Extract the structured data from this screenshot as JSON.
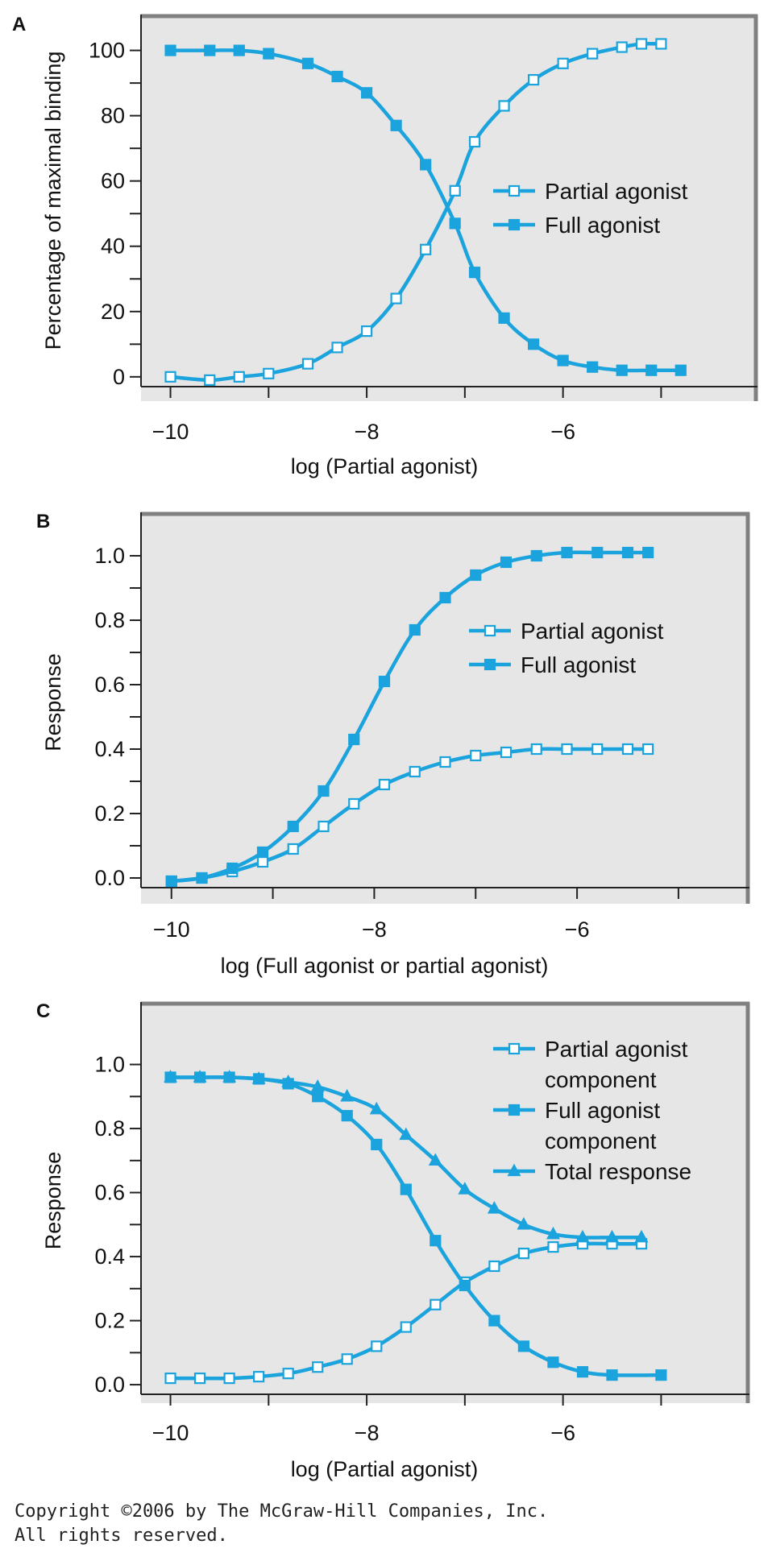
{
  "colors": {
    "series": "#1aa3dd",
    "plot_bg": "#e6e6e6",
    "frame": "#808080"
  },
  "chart_data": [
    {
      "panel": "A",
      "type": "line",
      "xlabel": "log (Partial agonist)",
      "ylabel": "Percentage of maximal binding",
      "xlim": [
        -10.3,
        -4.1
      ],
      "ylim": [
        -3,
        111
      ],
      "xticks": [
        -10,
        -9,
        -8,
        -7,
        -6,
        -5
      ],
      "xtick_labels": [
        "−10",
        "−8",
        "−6"
      ],
      "xtick_label_values": [
        -10,
        -8,
        -6
      ],
      "yticks": [
        0,
        10,
        20,
        30,
        40,
        50,
        60,
        70,
        80,
        90,
        100
      ],
      "ytick_labels": [
        "0",
        "20",
        "40",
        "60",
        "80",
        "100"
      ],
      "ytick_label_values": [
        0,
        20,
        40,
        60,
        80,
        100
      ],
      "legend_position": "right",
      "series": [
        {
          "name": "Partial agonist",
          "marker": "open-square",
          "x": [
            -10,
            -9.6,
            -9.3,
            -9,
            -8.6,
            -8.3,
            -8,
            -7.7,
            -7.4,
            -7.1,
            -6.9,
            -6.6,
            -6.3,
            -6,
            -5.7,
            -5.4,
            -5.2,
            -5
          ],
          "y": [
            0,
            -1,
            0,
            1,
            4,
            9,
            14,
            24,
            39,
            57,
            72,
            83,
            91,
            96,
            99,
            101,
            102,
            102
          ]
        },
        {
          "name": "Full agonist",
          "marker": "filled-square",
          "x": [
            -10,
            -9.6,
            -9.3,
            -9,
            -8.6,
            -8.3,
            -8,
            -7.7,
            -7.4,
            -7.1,
            -6.9,
            -6.6,
            -6.3,
            -6,
            -5.7,
            -5.4,
            -5.1,
            -4.8
          ],
          "y": [
            100,
            100,
            100,
            99,
            96,
            92,
            87,
            77,
            65,
            47,
            32,
            18,
            10,
            5,
            3,
            2,
            2,
            2
          ]
        }
      ]
    },
    {
      "panel": "B",
      "type": "line",
      "xlabel": "log (Full agonist or partial agonist)",
      "ylabel": "Response",
      "xlim": [
        -10.3,
        -4.3
      ],
      "ylim": [
        -0.03,
        1.12
      ],
      "xticks": [
        -10,
        -9,
        -8,
        -7,
        -6,
        -5
      ],
      "xtick_labels": [
        "−10",
        "−8",
        "−6"
      ],
      "xtick_label_values": [
        -10,
        -8,
        -6
      ],
      "yticks": [
        0,
        0.1,
        0.2,
        0.3,
        0.4,
        0.5,
        0.6,
        0.7,
        0.8,
        0.9,
        1.0
      ],
      "ytick_labels": [
        "0.0",
        "0.2",
        "0.4",
        "0.6",
        "0.8",
        "1.0"
      ],
      "ytick_label_values": [
        0,
        0.2,
        0.4,
        0.6,
        0.8,
        1.0
      ],
      "legend_position": "right",
      "series": [
        {
          "name": "Partial agonist",
          "marker": "open-square",
          "x": [
            -10,
            -9.7,
            -9.4,
            -9.1,
            -8.8,
            -8.5,
            -8.2,
            -7.9,
            -7.6,
            -7.3,
            -7,
            -6.7,
            -6.4,
            -6.1,
            -5.8,
            -5.5,
            -5.3
          ],
          "y": [
            -0.01,
            0,
            0.02,
            0.05,
            0.09,
            0.16,
            0.23,
            0.29,
            0.33,
            0.36,
            0.38,
            0.39,
            0.4,
            0.4,
            0.4,
            0.4,
            0.4
          ]
        },
        {
          "name": "Full agonist",
          "marker": "filled-square",
          "x": [
            -10,
            -9.7,
            -9.4,
            -9.1,
            -8.8,
            -8.5,
            -8.2,
            -7.9,
            -7.6,
            -7.3,
            -7,
            -6.7,
            -6.4,
            -6.1,
            -5.8,
            -5.5,
            -5.3
          ],
          "y": [
            -0.01,
            0,
            0.03,
            0.08,
            0.16,
            0.27,
            0.43,
            0.61,
            0.77,
            0.87,
            0.94,
            0.98,
            1.0,
            1.01,
            1.01,
            1.01,
            1.01
          ]
        }
      ]
    },
    {
      "panel": "C",
      "type": "line",
      "xlabel": "log (Partial agonist)",
      "ylabel": "Response",
      "xlim": [
        -10.3,
        -4.1
      ],
      "ylim": [
        -0.03,
        1.18
      ],
      "xticks": [
        -10,
        -9,
        -8,
        -7,
        -6,
        -5
      ],
      "xtick_labels": [
        "−10",
        "−8",
        "−6"
      ],
      "xtick_label_values": [
        -10,
        -8,
        -6
      ],
      "yticks": [
        0,
        0.1,
        0.2,
        0.3,
        0.4,
        0.5,
        0.6,
        0.7,
        0.8,
        0.9,
        1.0
      ],
      "ytick_labels": [
        "0.0",
        "0.2",
        "0.4",
        "0.6",
        "0.8",
        "1.0"
      ],
      "ytick_label_values": [
        0,
        0.2,
        0.4,
        0.6,
        0.8,
        1.0
      ],
      "legend_position": "top-right",
      "series": [
        {
          "name": "Partial agonist component",
          "legend_lines": [
            "Partial agonist",
            "component"
          ],
          "marker": "open-square",
          "x": [
            -10,
            -9.7,
            -9.4,
            -9.1,
            -8.8,
            -8.5,
            -8.2,
            -7.9,
            -7.6,
            -7.3,
            -7,
            -6.7,
            -6.4,
            -6.1,
            -5.8,
            -5.5,
            -5.2
          ],
          "y": [
            0.02,
            0.02,
            0.02,
            0.025,
            0.035,
            0.055,
            0.08,
            0.12,
            0.18,
            0.25,
            0.32,
            0.37,
            0.41,
            0.43,
            0.44,
            0.44,
            0.44
          ]
        },
        {
          "name": "Full agonist component",
          "legend_lines": [
            "Full agonist",
            "component"
          ],
          "marker": "filled-square",
          "x": [
            -10,
            -9.7,
            -9.4,
            -9.1,
            -8.8,
            -8.5,
            -8.2,
            -7.9,
            -7.6,
            -7.3,
            -7,
            -6.7,
            -6.4,
            -6.1,
            -5.8,
            -5.5,
            -5
          ],
          "y": [
            0.96,
            0.96,
            0.96,
            0.955,
            0.94,
            0.9,
            0.84,
            0.75,
            0.61,
            0.45,
            0.31,
            0.2,
            0.12,
            0.07,
            0.04,
            0.03,
            0.03
          ]
        },
        {
          "name": "Total response",
          "legend_lines": [
            "Total response"
          ],
          "marker": "filled-triangle",
          "x": [
            -10,
            -9.7,
            -9.4,
            -9.1,
            -8.8,
            -8.5,
            -8.2,
            -7.9,
            -7.6,
            -7.3,
            -7,
            -6.7,
            -6.4,
            -6.1,
            -5.8,
            -5.5,
            -5.2
          ],
          "y": [
            0.96,
            0.96,
            0.96,
            0.955,
            0.945,
            0.93,
            0.9,
            0.86,
            0.78,
            0.7,
            0.61,
            0.55,
            0.5,
            0.47,
            0.46,
            0.46,
            0.46
          ]
        }
      ]
    }
  ],
  "copyright": {
    "line1": "Copyright ©2006 by The McGraw-Hill Companies, Inc.",
    "line2": "All rights reserved."
  }
}
